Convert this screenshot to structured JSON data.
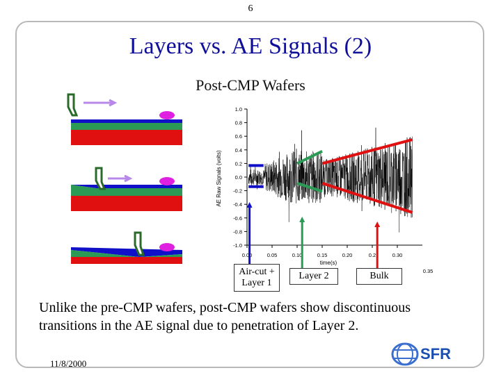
{
  "page_number": "6",
  "title": "Layers vs. AE Signals (2)",
  "subtitle": "Post-CMP Wafers",
  "labels": {
    "air_cut": "Air-cut + Layer 1",
    "layer2": "Layer 2",
    "bulk": "Bulk"
  },
  "caption": "Unlike the pre-CMP wafers, post-CMP wafers show  discontinuous transitions in the AE signal due to penetration of Layer 2.",
  "date": "11/8/2000",
  "logo": "SFR",
  "chart_data": {
    "type": "line",
    "ylabel": "AE Raw Signals (volts)",
    "xlabel": "time(s)",
    "y_ticks": [
      "1.0",
      "0.8",
      "0.6",
      "0.4",
      "0.2",
      "0.0",
      "-0.2",
      "-0.4",
      "-0.6",
      "-0.8",
      "-1.0"
    ],
    "x_ticks": [
      "0.00",
      "0.05",
      "0.10",
      "0.15",
      "0.20",
      "0.2",
      "0.30"
    ],
    "extra_tick": "0.35",
    "xlim": [
      0,
      0.35
    ],
    "ylim": [
      -1.0,
      1.0
    ],
    "colors": {
      "signal": "#000000",
      "blue": "#1010c8",
      "green": "#2a9a55",
      "red": "#e01010"
    },
    "phase_markers": [
      {
        "name": "air-cut-layer1",
        "color": "blue",
        "x_start": 0.003,
        "x_end": 0.033,
        "y_top": 0.17,
        "y_bottom": -0.14
      },
      {
        "name": "layer2",
        "color": "green",
        "x_start": 0.1,
        "x_end": 0.15,
        "y_top": 0.38,
        "y_bottom": -0.21
      },
      {
        "name": "bulk",
        "color": "red",
        "x_start": 0.15,
        "x_end": 0.33,
        "y_top": 0.55,
        "y_bottom": -0.52
      }
    ]
  }
}
